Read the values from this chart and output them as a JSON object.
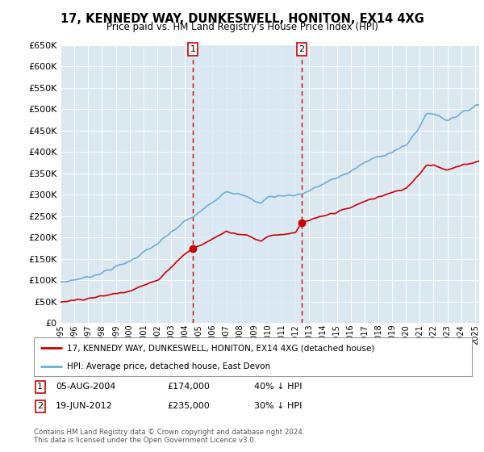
{
  "title": "17, KENNEDY WAY, DUNKESWELL, HONITON, EX14 4XG",
  "subtitle": "Price paid vs. HM Land Registry's House Price Index (HPI)",
  "legend_line1": "17, KENNEDY WAY, DUNKESWELL, HONITON, EX14 4XG (detached house)",
  "legend_line2": "HPI: Average price, detached house, East Devon",
  "annotation1_label": "1",
  "annotation1_date": "05-AUG-2004",
  "annotation1_price": "£174,000",
  "annotation1_pct": "40% ↓ HPI",
  "annotation2_label": "2",
  "annotation2_date": "19-JUN-2012",
  "annotation2_price": "£235,000",
  "annotation2_pct": "30% ↓ HPI",
  "footer": "Contains HM Land Registry data © Crown copyright and database right 2024.\nThis data is licensed under the Open Government Licence v3.0.",
  "ylim": [
    0,
    650000
  ],
  "yticks": [
    0,
    50000,
    100000,
    150000,
    200000,
    250000,
    300000,
    350000,
    400000,
    450000,
    500000,
    550000,
    600000,
    650000
  ],
  "hpi_color": "#6aaed6",
  "price_color": "#cc0000",
  "vline_color": "#cc0000",
  "shade_color": "#d8e8f3",
  "marker1_x": 2004.58,
  "marker1_y": 174000,
  "marker2_x": 2012.46,
  "marker2_y": 235000,
  "xmin": 1995.0,
  "xmax": 2025.3
}
